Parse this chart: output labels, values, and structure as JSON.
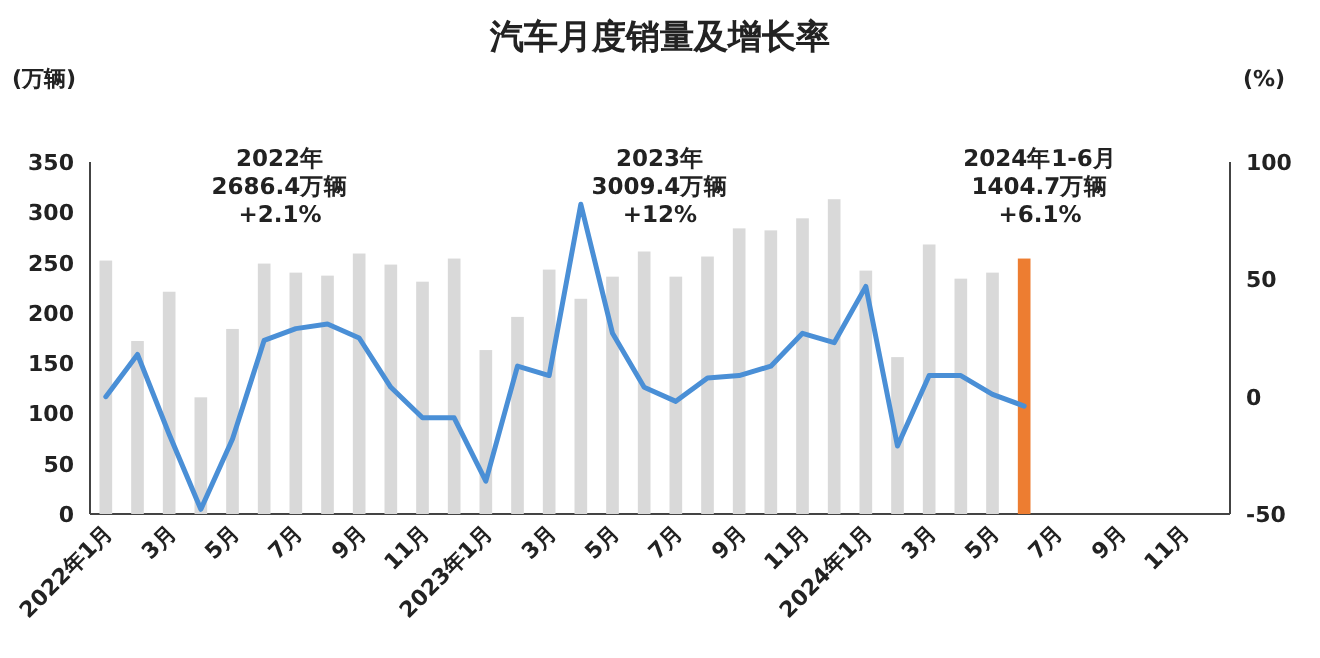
{
  "chart_data": {
    "type": "bar",
    "title": "汽车月度销量及增长率",
    "ylabel": "(万辆)",
    "y2label": "(%)",
    "categories": [
      "2022年1月",
      null,
      "3月",
      null,
      "5月",
      null,
      "7月",
      null,
      "9月",
      null,
      "11月",
      null,
      "2023年1月",
      null,
      "3月",
      null,
      "5月",
      null,
      "7月",
      null,
      "9月",
      null,
      "11月",
      null,
      "2024年1月",
      null,
      "3月",
      null,
      "5月",
      null,
      "7月",
      null,
      "9月",
      null,
      "11月",
      null
    ],
    "series": [
      {
        "colors": [
          "#d9d9d9",
          "#d9d9d9",
          "#d9d9d9",
          "#d9d9d9",
          "#d9d9d9",
          "#d9d9d9",
          "#d9d9d9",
          "#d9d9d9",
          "#d9d9d9",
          "#d9d9d9",
          "#d9d9d9",
          "#d9d9d9",
          "#d9d9d9",
          "#d9d9d9",
          "#d9d9d9",
          "#d9d9d9",
          "#d9d9d9",
          "#d9d9d9",
          "#d9d9d9",
          "#d9d9d9",
          "#d9d9d9",
          "#d9d9d9",
          "#d9d9d9",
          "#d9d9d9",
          "#d9d9d9",
          "#d9d9d9",
          "#d9d9d9",
          "#d9d9d9",
          "#d9d9d9",
          "#ed7d31",
          null,
          null,
          null,
          null,
          null,
          null
        ],
        "values": [
          252,
          172,
          221,
          116,
          184,
          249,
          240,
          237,
          259,
          248,
          231,
          254,
          163,
          196,
          243,
          214,
          236,
          261,
          236,
          256,
          284,
          282,
          294,
          313,
          242,
          156,
          268,
          234,
          240,
          254,
          null,
          null,
          null,
          null,
          null,
          null
        ]
      },
      {
        "type": "line",
        "axis": "y2",
        "color": "#4a8fd6",
        "values": [
          0,
          18,
          -16,
          -48,
          -18,
          24,
          29,
          31,
          25,
          4,
          -9,
          -9,
          -36,
          13,
          9,
          82,
          27,
          4,
          -2,
          8,
          9,
          13,
          27,
          23,
          47,
          -21,
          9,
          9,
          1,
          -4,
          null,
          null,
          null,
          null,
          null,
          null
        ]
      }
    ],
    "ylim": [
      0,
      350
    ],
    "yticks": [
      0,
      50,
      100,
      150,
      200,
      250,
      300,
      350
    ],
    "y2lim": [
      -50,
      100
    ],
    "y2ticks": [
      -50,
      0,
      50,
      100
    ],
    "annotations": [
      "2022年\n2686.4万辆\n+2.1%",
      "2023年\n3009.4万辆\n+12%",
      "2024年1-6月\n1404.7万辆\n+6.1%"
    ],
    "grid": false,
    "marker": "none",
    "line_style": "solid"
  }
}
